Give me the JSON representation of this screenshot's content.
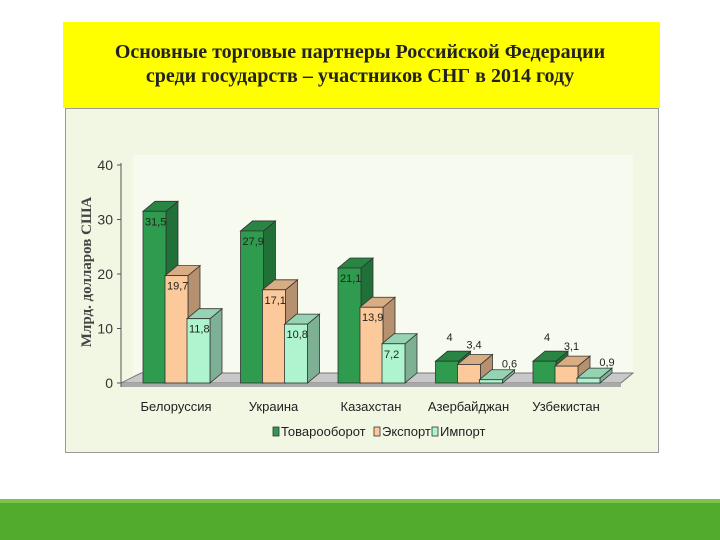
{
  "slide": {
    "title_line1": "Основные торговые партнеры Российской Федерации",
    "title_line2": "среди государств – участников СНГ в 2014 году"
  },
  "colors": {
    "title_bg": "#ffff00",
    "chart_bg": "#f2f7e4",
    "bottom_band": "#52ab2c",
    "turnover": "#2e9b4e",
    "export": "#fcc99a",
    "import": "#aef5cf"
  },
  "chart_data": {
    "type": "bar",
    "title": "",
    "ylabel": "Млрд. долларов США",
    "xlabel": "",
    "ylim": [
      0,
      40
    ],
    "yticks": [
      0,
      10,
      20,
      30,
      40
    ],
    "grid": false,
    "legend_position": "bottom",
    "categories": [
      "Белоруссия",
      "Украина",
      "Казахстан",
      "Азербайджан",
      "Узбекистан"
    ],
    "series": [
      {
        "name": "Товарооборот",
        "values": [
          31.5,
          27.9,
          21.1,
          4,
          4
        ],
        "labels": [
          "31,5",
          "27,9",
          "21,1",
          "4",
          "4"
        ],
        "color": "#2e9b4e"
      },
      {
        "name": "Экспорт",
        "values": [
          19.7,
          17.1,
          13.9,
          3.4,
          3.1
        ],
        "labels": [
          "19,7",
          "17,1",
          "13,9",
          "3,4",
          "3,1"
        ],
        "color": "#fcc99a"
      },
      {
        "name": "Импорт",
        "values": [
          11.8,
          10.8,
          7.2,
          0.6,
          0.9
        ],
        "labels": [
          "11,8",
          "10,8",
          "7,2",
          "0,6",
          "0,9"
        ],
        "color": "#aef5cf"
      }
    ]
  }
}
